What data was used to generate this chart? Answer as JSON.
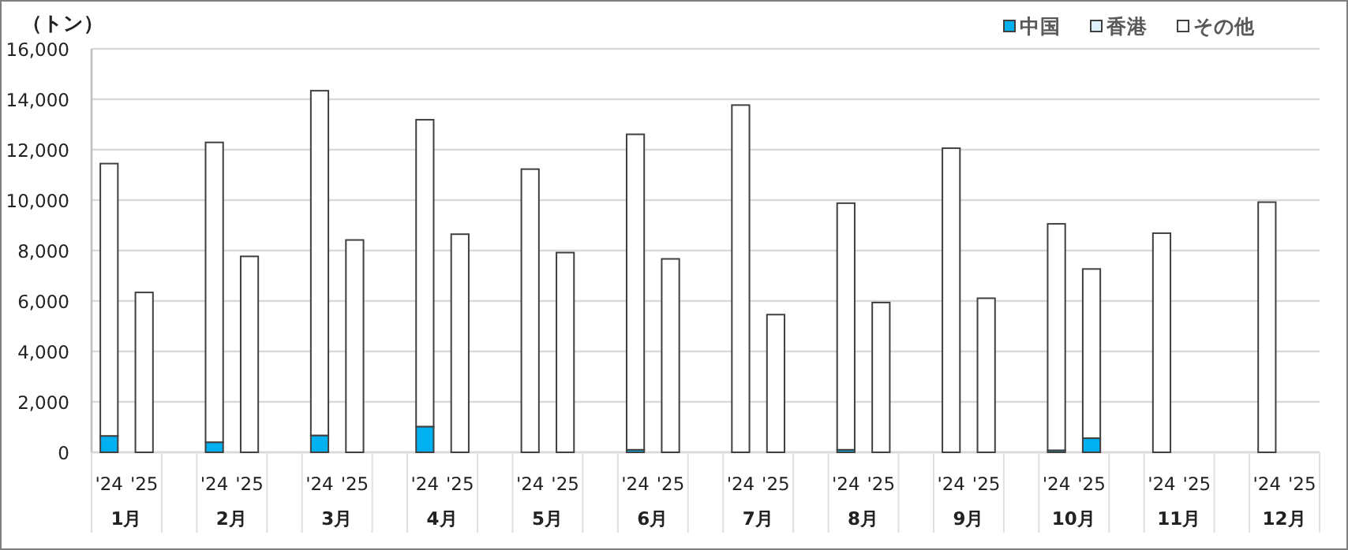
{
  "chart_data": {
    "type": "bar",
    "stacked": true,
    "ylabel": "（トン）",
    "categories": [
      "'24",
      "'25",
      "'24",
      "'25",
      "'24",
      "'25",
      "'24",
      "'25",
      "'24",
      "'25",
      "'24",
      "'25",
      "'24",
      "'25",
      "'24",
      "'25",
      "'24",
      "'25",
      "'24",
      "'25",
      "'24",
      "'25",
      "'24",
      "'25"
    ],
    "annotations": [
      "1月",
      "2月",
      "3月",
      "4月",
      "5月",
      "6月",
      "7月",
      "8月",
      "9月",
      "10月",
      "11月",
      "12月"
    ],
    "series": [
      {
        "name": "中国",
        "color": "#00b0f0",
        "values": [
          650,
          0,
          400,
          0,
          670,
          0,
          1020,
          0,
          0,
          0,
          100,
          0,
          0,
          0,
          100,
          0,
          0,
          0,
          80,
          560,
          0,
          null,
          0,
          null
        ]
      },
      {
        "name": "香港",
        "color": "#ddf2fb",
        "values": [
          0,
          0,
          0,
          0,
          0,
          0,
          0,
          0,
          0,
          0,
          0,
          0,
          0,
          0,
          0,
          0,
          0,
          0,
          0,
          0,
          0,
          null,
          0,
          null
        ]
      },
      {
        "name": "その他",
        "color": "#ffffff",
        "values": [
          10800,
          6340,
          11890,
          7770,
          13670,
          8420,
          12170,
          8650,
          11230,
          7920,
          12510,
          7670,
          13770,
          5460,
          9780,
          5940,
          12060,
          6110,
          8980,
          6710,
          8690,
          null,
          9920,
          null
        ]
      }
    ],
    "ylim": [
      0,
      16000
    ],
    "yticks": [
      0,
      {
        "value": 2000,
        "label": "2,000"
      },
      {
        "value": 4000,
        "label": "4,000"
      },
      {
        "value": 6000,
        "label": "6,000"
      },
      {
        "value": 8000,
        "label": "8,000"
      },
      {
        "value": 10000,
        "label": "10,000"
      },
      {
        "value": 12000,
        "label": "12,000"
      },
      {
        "value": 14000,
        "label": "14,000"
      },
      {
        "value": 16000,
        "label": "16,000"
      }
    ],
    "grid": "y",
    "legend": "top right"
  }
}
